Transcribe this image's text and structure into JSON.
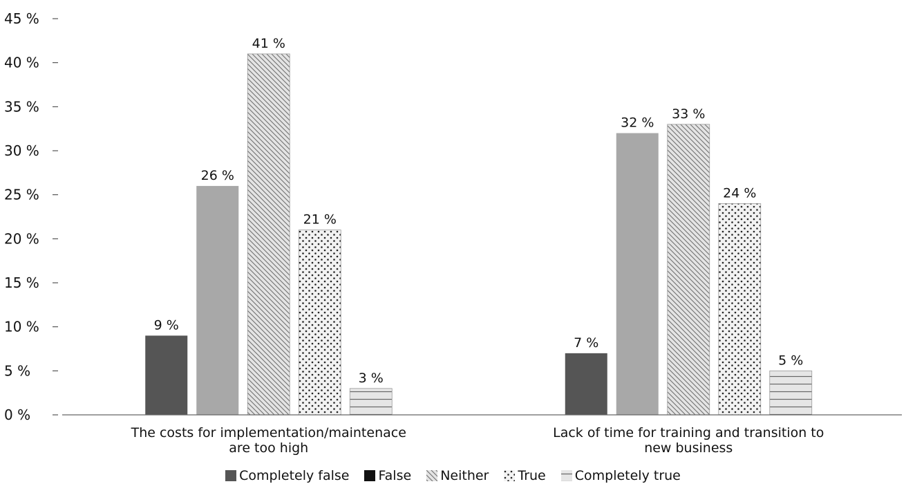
{
  "chart_data": {
    "type": "bar",
    "categories": [
      "The costs for implementation/maintenace are too high",
      "Lack of time for training and transition to new business"
    ],
    "category_lines": [
      [
        "The costs for implementation/maintenace",
        "are too high"
      ],
      [
        "Lack of time for training and transition to",
        "new business"
      ]
    ],
    "series": [
      {
        "name": "Completely false",
        "values": [
          9,
          7
        ],
        "labels": [
          "9 %",
          "7 %"
        ],
        "color": "#555555",
        "pattern": "solid"
      },
      {
        "name": "False",
        "values": [
          26,
          32
        ],
        "labels": [
          "26 %",
          "32 %"
        ],
        "color": "#a8a8a8",
        "pattern": "solid"
      },
      {
        "name": "Neither",
        "values": [
          41,
          33
        ],
        "labels": [
          "41 %",
          "33 %"
        ],
        "color": "#dcdcdc",
        "pattern": "diagonal"
      },
      {
        "name": "True",
        "values": [
          21,
          24
        ],
        "labels": [
          "21 %",
          "24 %"
        ],
        "color": "#f0f0f0",
        "pattern": "dots"
      },
      {
        "name": "Completely true",
        "values": [
          3,
          5
        ],
        "labels": [
          "3 %",
          "5 %"
        ],
        "color": "#e2e2e2",
        "pattern": "horizontal"
      }
    ],
    "ylim": [
      0,
      45
    ],
    "yticks": [
      0,
      5,
      10,
      15,
      20,
      25,
      30,
      35,
      40,
      45
    ],
    "ytick_labels": [
      "0 %",
      "5 %",
      "10 %",
      "15 %",
      "20 %",
      "25 %",
      "30 %",
      "35 %",
      "40 %",
      "45 %"
    ],
    "grid": false,
    "legend_position": "bottom"
  }
}
